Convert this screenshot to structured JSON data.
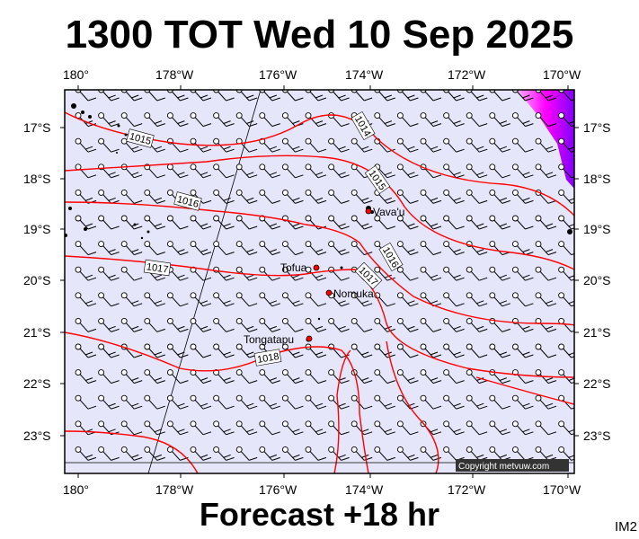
{
  "title": "1300 TOT Wed 10 Sep 2025",
  "subtitle": "Forecast +18 hr",
  "product_code": "IM2",
  "copyright": "Copyright metvuw.com",
  "colors": {
    "sea": "#e6e6fb",
    "isobar": "#ff0000",
    "land": "#000000",
    "high_wind": "#ff00ff"
  },
  "axes": {
    "lon_labels": [
      "180°",
      "178°W",
      "176°W",
      "174°W",
      "172°W",
      "170°W"
    ],
    "lat_labels": [
      "17°S",
      "18°S",
      "19°S",
      "20°S",
      "21°S",
      "22°S",
      "23°S"
    ]
  },
  "places": [
    {
      "name": "Vava'u"
    },
    {
      "name": "Tofua"
    },
    {
      "name": "Nomuka"
    },
    {
      "name": "Tongatapu"
    }
  ],
  "isobar_labels": [
    "1014",
    "1015",
    "1015",
    "1016",
    "1016",
    "1017",
    "1017",
    "1018"
  ]
}
